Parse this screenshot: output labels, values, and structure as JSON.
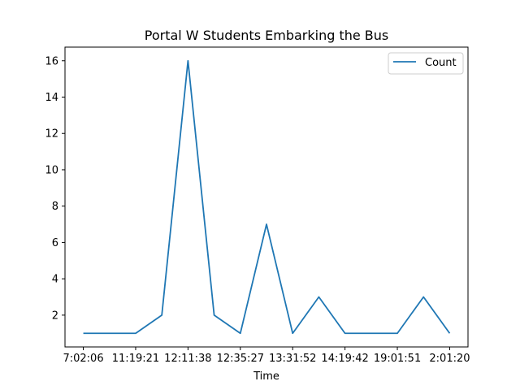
{
  "chart_data": {
    "type": "line",
    "title": "Portal W Students Embarking the Bus",
    "xlabel": "Time",
    "ylabel": "",
    "x_tick_labels": [
      "7:02:06",
      "11:19:21",
      "12:11:38",
      "12:35:27",
      "13:31:52",
      "14:19:42",
      "19:01:51",
      "2:01:20"
    ],
    "x_tick_positions": [
      0,
      2,
      4,
      6,
      8,
      10,
      12,
      14
    ],
    "y_ticks": [
      2,
      4,
      6,
      8,
      10,
      12,
      14,
      16
    ],
    "xlim": [
      -0.7,
      14.7
    ],
    "ylim": [
      0.25,
      16.75
    ],
    "grid": false,
    "legend_position": "top-right",
    "series": [
      {
        "name": "Count",
        "color": "#1f77b4",
        "x": [
          0,
          1,
          2,
          3,
          4,
          5,
          6,
          7,
          8,
          9,
          10,
          11,
          12,
          13,
          14
        ],
        "values": [
          1,
          1,
          1,
          2,
          16,
          2,
          1,
          7,
          1,
          3,
          1,
          1,
          1,
          3,
          1
        ]
      }
    ]
  }
}
